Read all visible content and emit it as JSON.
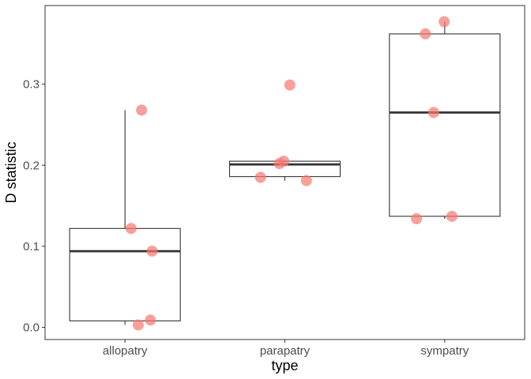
{
  "chart_data": {
    "type": "box",
    "xlabel": "type",
    "ylabel": "D statistic",
    "categories": [
      "allopatry",
      "parapatry",
      "sympatry"
    ],
    "ylim": [
      -0.015,
      0.397
    ],
    "yticks": [
      0.0,
      0.1,
      0.2,
      0.3
    ],
    "ytick_labels": [
      "0.0",
      "0.1",
      "0.2",
      "0.3"
    ],
    "grid": false,
    "legend": "none",
    "boxes": [
      {
        "category": "allopatry",
        "whisker_low": 0.003,
        "q1": 0.008,
        "median": 0.094,
        "q3": 0.122,
        "whisker_high": 0.268
      },
      {
        "category": "parapatry",
        "whisker_low": 0.181,
        "q1": 0.186,
        "median": 0.201,
        "q3": 0.205,
        "whisker_high": 0.205
      },
      {
        "category": "sympatry",
        "whisker_low": 0.134,
        "q1": 0.137,
        "median": 0.265,
        "q3": 0.362,
        "whisker_high": 0.377
      }
    ],
    "points": [
      {
        "category": "allopatry",
        "y": 0.268,
        "jitter": 0.3
      },
      {
        "category": "allopatry",
        "y": 0.122,
        "jitter": 0.11
      },
      {
        "category": "allopatry",
        "y": 0.094,
        "jitter": 0.49
      },
      {
        "category": "allopatry",
        "y": 0.009,
        "jitter": 0.46
      },
      {
        "category": "allopatry",
        "y": 0.003,
        "jitter": 0.24
      },
      {
        "category": "parapatry",
        "y": 0.299,
        "jitter": 0.09
      },
      {
        "category": "parapatry",
        "y": 0.205,
        "jitter": -0.02
      },
      {
        "category": "parapatry",
        "y": 0.202,
        "jitter": -0.1
      },
      {
        "category": "parapatry",
        "y": 0.185,
        "jitter": -0.44
      },
      {
        "category": "parapatry",
        "y": 0.181,
        "jitter": 0.39
      },
      {
        "category": "sympatry",
        "y": 0.377,
        "jitter": -0.01
      },
      {
        "category": "sympatry",
        "y": 0.362,
        "jitter": -0.35
      },
      {
        "category": "sympatry",
        "y": 0.265,
        "jitter": -0.2
      },
      {
        "category": "sympatry",
        "y": 0.137,
        "jitter": 0.13
      },
      {
        "category": "sympatry",
        "y": 0.134,
        "jitter": -0.51
      }
    ],
    "colors": {
      "points": "#f8766d",
      "box_line": "#333333",
      "panel_border": "#333333",
      "background": "#ffffff"
    }
  }
}
